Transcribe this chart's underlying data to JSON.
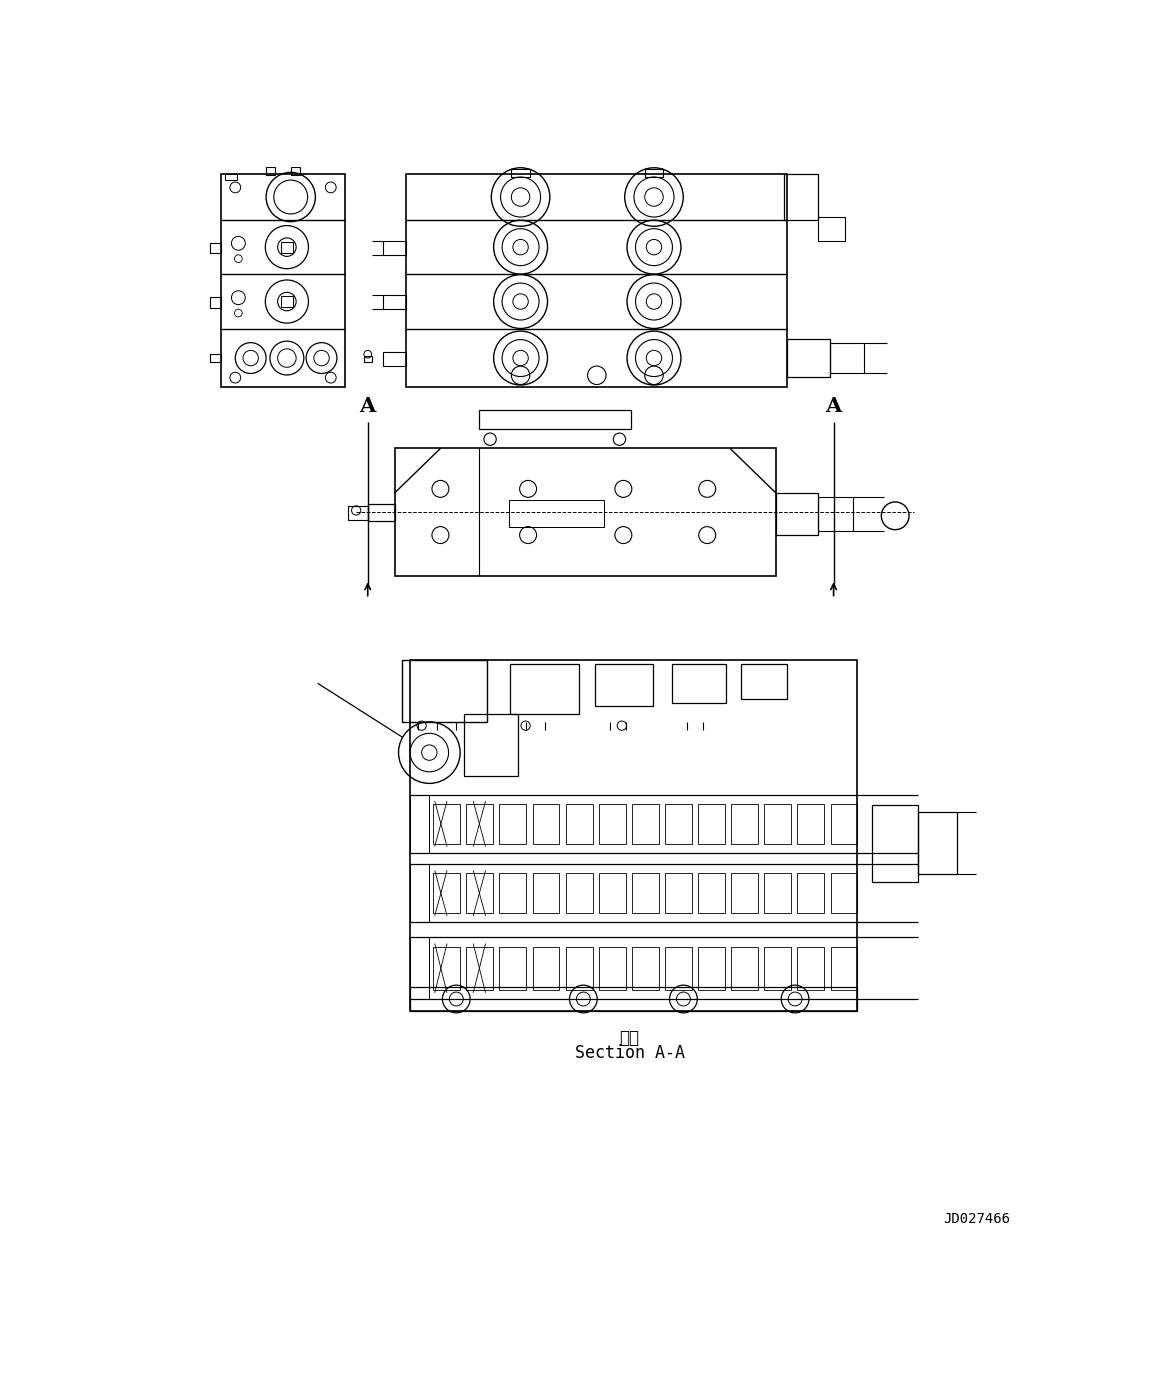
{
  "background_color": "#ffffff",
  "line_color": "#000000",
  "figsize": [
    11.63,
    13.95
  ],
  "dpi": 100,
  "section_label": "Section A-A",
  "section_label_jp": "断面",
  "drawing_id": "JD027466",
  "arrow_A_label": "A",
  "lw_heavy": 1.2,
  "lw_medium": 0.8,
  "lw_thin": 0.5
}
